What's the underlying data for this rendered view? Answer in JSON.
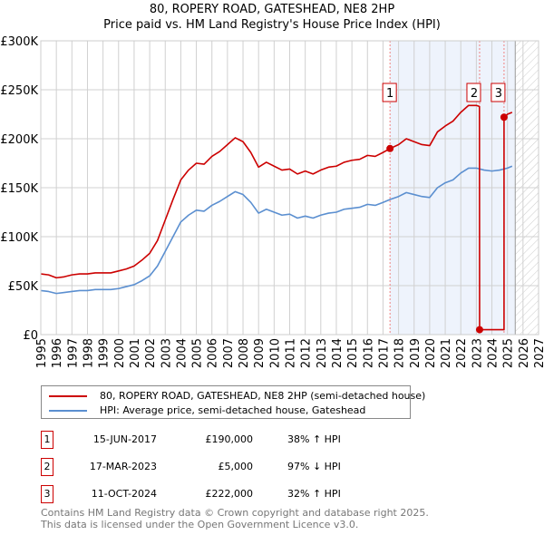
{
  "chart_data": {
    "type": "line",
    "title": "80, ROPERY ROAD, GATESHEAD, NE8 2HP",
    "subtitle": "Price paid vs. HM Land Registry's House Price Index (HPI)",
    "xlim": [
      1995,
      2027
    ],
    "ylim": [
      0,
      300000
    ],
    "x_ticks": [
      "1995",
      "1996",
      "1997",
      "1998",
      "1999",
      "2000",
      "2001",
      "2002",
      "2003",
      "2004",
      "2005",
      "2006",
      "2007",
      "2008",
      "2009",
      "2010",
      "2011",
      "2012",
      "2013",
      "2014",
      "2015",
      "2016",
      "2017",
      "2018",
      "2019",
      "2020",
      "2021",
      "2022",
      "2023",
      "2024",
      "2025",
      "2026",
      "2027"
    ],
    "y_ticks": [
      {
        "v": 0,
        "label": "£0"
      },
      {
        "v": 50000,
        "label": "£50K"
      },
      {
        "v": 100000,
        "label": "£100K"
      },
      {
        "v": 150000,
        "label": "£150K"
      },
      {
        "v": 200000,
        "label": "£200K"
      },
      {
        "v": 250000,
        "label": "£250K"
      },
      {
        "v": 300000,
        "label": "£300K"
      }
    ],
    "grid": true,
    "shaded_range": [
      2017.45,
      2025.5
    ],
    "forecast_hatch_from": 2025.5,
    "series": [
      {
        "name": "80, ROPERY ROAD, GATESHEAD, NE8 2HP (semi-detached house)",
        "color": "#cc0000",
        "points": [
          [
            1995,
            62
          ],
          [
            1995.5,
            61
          ],
          [
            1996,
            58
          ],
          [
            1996.5,
            59
          ],
          [
            1997,
            61
          ],
          [
            1997.5,
            62
          ],
          [
            1998,
            62
          ],
          [
            1998.5,
            63
          ],
          [
            1999,
            63
          ],
          [
            1999.5,
            63
          ],
          [
            2000,
            65
          ],
          [
            2000.5,
            67
          ],
          [
            2001,
            70
          ],
          [
            2001.5,
            76
          ],
          [
            2002,
            83
          ],
          [
            2002.5,
            96
          ],
          [
            2003,
            117
          ],
          [
            2003.5,
            138
          ],
          [
            2004,
            158
          ],
          [
            2004.5,
            168
          ],
          [
            2005,
            175
          ],
          [
            2005.5,
            174
          ],
          [
            2006,
            182
          ],
          [
            2006.5,
            187
          ],
          [
            2007,
            194
          ],
          [
            2007.5,
            201
          ],
          [
            2008,
            197
          ],
          [
            2008.5,
            186
          ],
          [
            2009,
            171
          ],
          [
            2009.5,
            176
          ],
          [
            2010,
            172
          ],
          [
            2010.5,
            168
          ],
          [
            2011,
            169
          ],
          [
            2011.5,
            164
          ],
          [
            2012,
            167
          ],
          [
            2012.5,
            164
          ],
          [
            2013,
            168
          ],
          [
            2013.5,
            171
          ],
          [
            2014,
            172
          ],
          [
            2014.5,
            176
          ],
          [
            2015,
            178
          ],
          [
            2015.5,
            179
          ],
          [
            2016,
            183
          ],
          [
            2016.5,
            182
          ],
          [
            2017,
            186
          ],
          [
            2017.45,
            190
          ],
          [
            2018,
            194
          ],
          [
            2018.5,
            200
          ],
          [
            2019,
            197
          ],
          [
            2019.5,
            194
          ],
          [
            2020,
            193
          ],
          [
            2020.5,
            207
          ],
          [
            2021,
            213
          ],
          [
            2021.5,
            218
          ],
          [
            2022,
            227
          ],
          [
            2022.5,
            234
          ],
          [
            2023,
            234
          ],
          [
            2023.2,
            233
          ],
          [
            2023.21,
            5
          ],
          [
            2024.78,
            5
          ],
          [
            2024.78,
            222
          ],
          [
            2025,
            225
          ],
          [
            2025.3,
            227
          ]
        ]
      },
      {
        "name": "HPI: Average price, semi-detached house, Gateshead",
        "color": "#5b8fd0",
        "points": [
          [
            1995,
            45
          ],
          [
            1995.5,
            44
          ],
          [
            1996,
            42
          ],
          [
            1996.5,
            43
          ],
          [
            1997,
            44
          ],
          [
            1997.5,
            45
          ],
          [
            1998,
            45
          ],
          [
            1998.5,
            46
          ],
          [
            1999,
            46
          ],
          [
            1999.5,
            46
          ],
          [
            2000,
            47
          ],
          [
            2000.5,
            49
          ],
          [
            2001,
            51
          ],
          [
            2001.5,
            55
          ],
          [
            2002,
            60
          ],
          [
            2002.5,
            70
          ],
          [
            2003,
            85
          ],
          [
            2003.5,
            100
          ],
          [
            2004,
            115
          ],
          [
            2004.5,
            122
          ],
          [
            2005,
            127
          ],
          [
            2005.5,
            126
          ],
          [
            2006,
            132
          ],
          [
            2006.5,
            136
          ],
          [
            2007,
            141
          ],
          [
            2007.5,
            146
          ],
          [
            2008,
            143
          ],
          [
            2008.5,
            135
          ],
          [
            2009,
            124
          ],
          [
            2009.5,
            128
          ],
          [
            2010,
            125
          ],
          [
            2010.5,
            122
          ],
          [
            2011,
            123
          ],
          [
            2011.5,
            119
          ],
          [
            2012,
            121
          ],
          [
            2012.5,
            119
          ],
          [
            2013,
            122
          ],
          [
            2013.5,
            124
          ],
          [
            2014,
            125
          ],
          [
            2014.5,
            128
          ],
          [
            2015,
            129
          ],
          [
            2015.5,
            130
          ],
          [
            2016,
            133
          ],
          [
            2016.5,
            132
          ],
          [
            2017,
            135
          ],
          [
            2017.45,
            138
          ],
          [
            2018,
            141
          ],
          [
            2018.5,
            145
          ],
          [
            2019,
            143
          ],
          [
            2019.5,
            141
          ],
          [
            2020,
            140
          ],
          [
            2020.5,
            150
          ],
          [
            2021,
            155
          ],
          [
            2021.5,
            158
          ],
          [
            2022,
            165
          ],
          [
            2022.5,
            170
          ],
          [
            2023,
            170
          ],
          [
            2023.5,
            168
          ],
          [
            2024,
            167
          ],
          [
            2024.5,
            168
          ],
          [
            2025,
            170
          ],
          [
            2025.3,
            172
          ]
        ]
      }
    ],
    "value_units": "thousands GBP",
    "sales": [
      {
        "label": "1",
        "x": 2017.45,
        "value": 190
      },
      {
        "label": "2",
        "x": 2023.21,
        "value": 5
      },
      {
        "label": "3",
        "x": 2024.78,
        "value": 222
      }
    ]
  },
  "legend": [
    "80, ROPERY ROAD, GATESHEAD, NE8 2HP (semi-detached house)",
    "HPI: Average price, semi-detached house, Gateshead"
  ],
  "transactions": [
    {
      "num": "1",
      "date": "15-JUN-2017",
      "price": "£190,000",
      "hpi": "38% ↑ HPI"
    },
    {
      "num": "2",
      "date": "17-MAR-2023",
      "price": "£5,000",
      "hpi": "97% ↓ HPI"
    },
    {
      "num": "3",
      "date": "11-OCT-2024",
      "price": "£222,000",
      "hpi": "32% ↑ HPI"
    }
  ],
  "footer": [
    "Contains HM Land Registry data © Crown copyright and database right 2025.",
    "This data is licensed under the Open Government Licence v3.0."
  ]
}
